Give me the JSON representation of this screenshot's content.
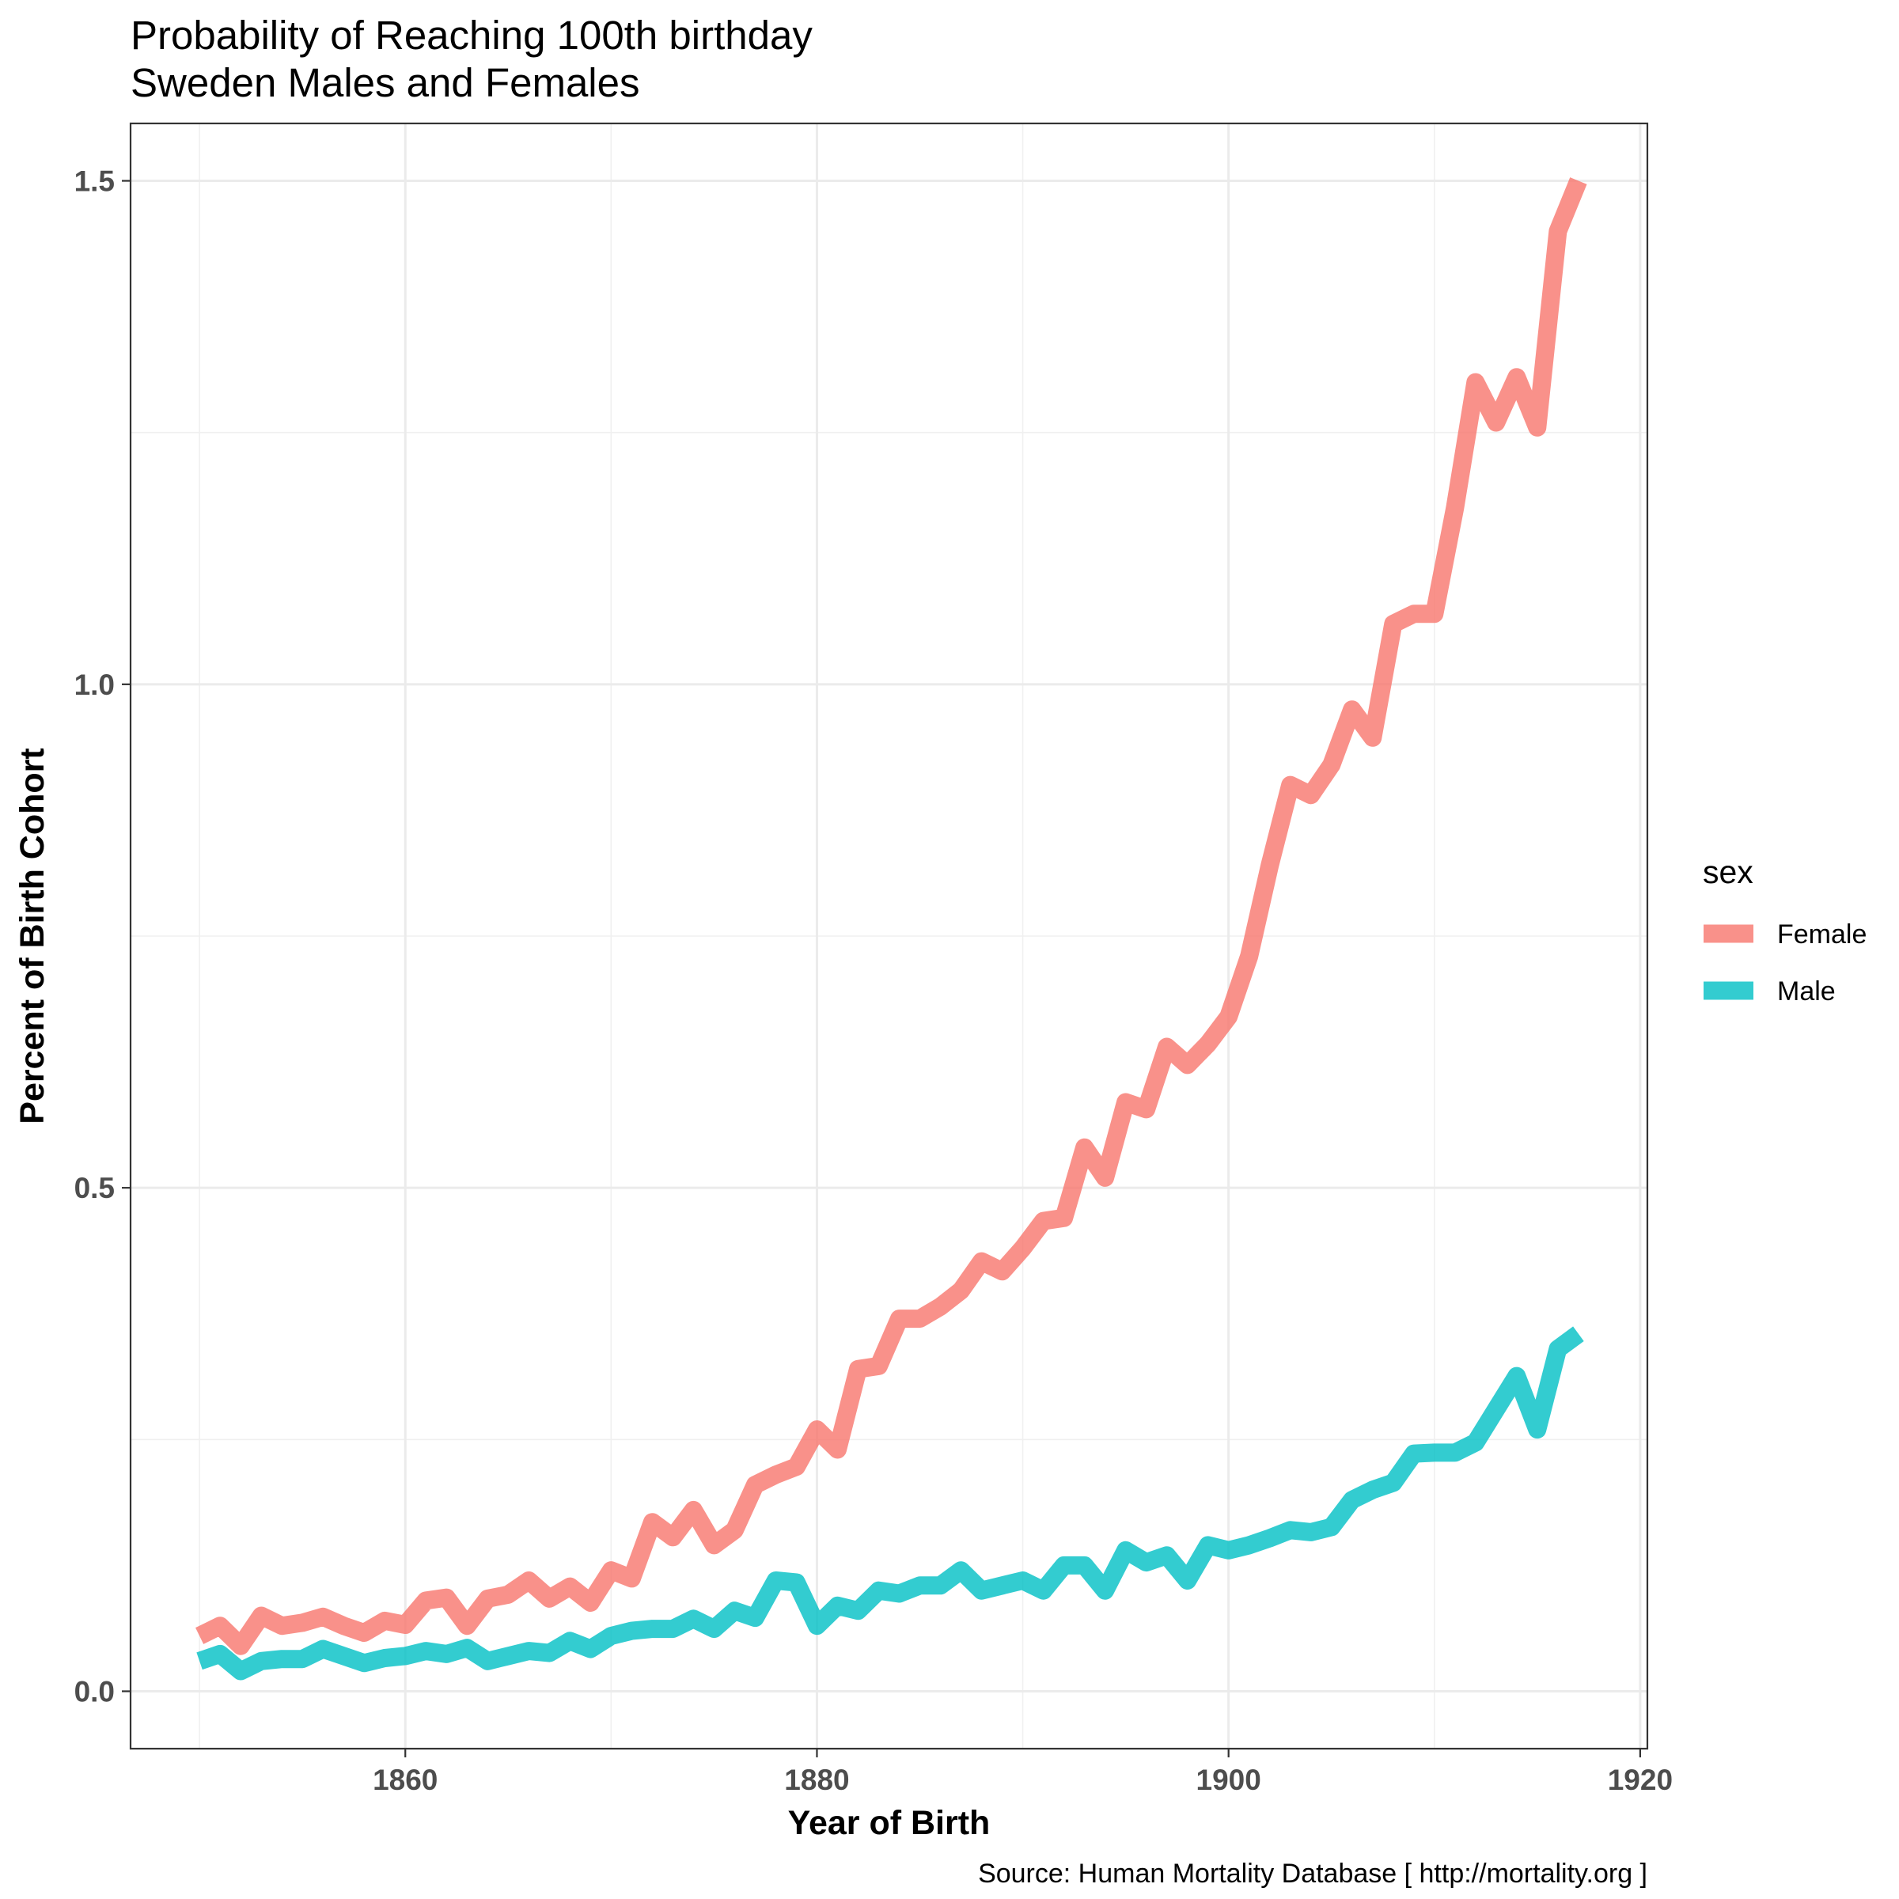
{
  "chart_data": {
    "type": "line",
    "title": "Probability of Reaching 100th birthday",
    "subtitle": "Sweden Males and Females",
    "xlabel": "Year of Birth",
    "ylabel": "Percent of Birth Cohort",
    "caption": "Source: Human Mortality Database [ http://mortality.org ]",
    "xlim": [
      1846.65,
      1920.35
    ],
    "ylim": [
      -0.057,
      1.557
    ],
    "x_ticks": [
      1860,
      1880,
      1900,
      1920
    ],
    "x_tick_labels": [
      "1860",
      "1880",
      "1900",
      "1920"
    ],
    "y_ticks": [
      0.0,
      0.5,
      1.0,
      1.5
    ],
    "y_tick_labels": [
      "0.0",
      "0.5",
      "1.0",
      "1.5"
    ],
    "grid": true,
    "legend": {
      "title": "sex",
      "position": "right"
    },
    "x": [
      1850,
      1851,
      1852,
      1853,
      1854,
      1855,
      1856,
      1857,
      1858,
      1859,
      1860,
      1861,
      1862,
      1863,
      1864,
      1865,
      1866,
      1867,
      1868,
      1869,
      1870,
      1871,
      1872,
      1873,
      1874,
      1875,
      1876,
      1877,
      1878,
      1879,
      1880,
      1881,
      1882,
      1883,
      1884,
      1885,
      1886,
      1887,
      1888,
      1889,
      1890,
      1891,
      1892,
      1893,
      1894,
      1895,
      1896,
      1897,
      1898,
      1899,
      1900,
      1901,
      1902,
      1903,
      1904,
      1905,
      1906,
      1907,
      1908,
      1909,
      1910,
      1911,
      1912,
      1913,
      1914,
      1915,
      1916,
      1917
    ],
    "series": [
      {
        "name": "Female",
        "color": "#F8766D",
        "values": [
          0.055,
          0.065,
          0.045,
          0.075,
          0.065,
          0.068,
          0.074,
          0.065,
          0.058,
          0.07,
          0.066,
          0.09,
          0.093,
          0.065,
          0.092,
          0.096,
          0.11,
          0.092,
          0.104,
          0.088,
          0.12,
          0.112,
          0.168,
          0.153,
          0.18,
          0.145,
          0.16,
          0.205,
          0.215,
          0.223,
          0.26,
          0.24,
          0.32,
          0.323,
          0.37,
          0.37,
          0.382,
          0.398,
          0.427,
          0.417,
          0.44,
          0.467,
          0.47,
          0.54,
          0.51,
          0.585,
          0.578,
          0.64,
          0.622,
          0.643,
          0.67,
          0.73,
          0.82,
          0.9,
          0.89,
          0.92,
          0.975,
          0.947,
          1.06,
          1.07,
          1.07,
          1.175,
          1.3,
          1.26,
          1.305,
          1.255,
          1.45,
          1.5
        ]
      },
      {
        "name": "Male",
        "color": "#00BFC4",
        "values": [
          0.03,
          0.037,
          0.02,
          0.03,
          0.032,
          0.032,
          0.042,
          0.035,
          0.028,
          0.033,
          0.035,
          0.04,
          0.037,
          0.043,
          0.03,
          0.035,
          0.04,
          0.038,
          0.05,
          0.042,
          0.055,
          0.06,
          0.062,
          0.062,
          0.072,
          0.062,
          0.08,
          0.073,
          0.11,
          0.108,
          0.065,
          0.085,
          0.08,
          0.1,
          0.097,
          0.105,
          0.105,
          0.12,
          0.1,
          0.105,
          0.11,
          0.1,
          0.125,
          0.125,
          0.1,
          0.14,
          0.128,
          0.135,
          0.11,
          0.145,
          0.14,
          0.145,
          0.152,
          0.16,
          0.158,
          0.163,
          0.19,
          0.2,
          0.207,
          0.236,
          0.237,
          0.237,
          0.247,
          0.28,
          0.313,
          0.26,
          0.34,
          0.355
        ]
      }
    ]
  }
}
